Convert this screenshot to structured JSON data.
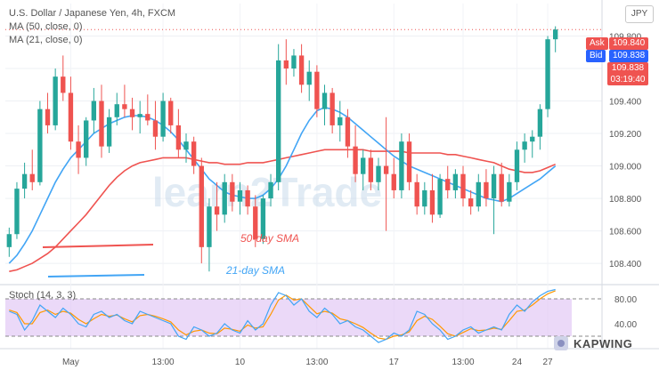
{
  "legend": {
    "symbol": "U.S. Dollar / Japanese Yen, 4h, FXCM",
    "ma50": "MA (50, close, 0)",
    "ma21": "MA (21, close, 0)",
    "stoch": "Stoch (14, 3, 3)"
  },
  "currency_badge": "JPY",
  "quotes": {
    "ask_label": "Ask",
    "ask": "109.840",
    "bid_label": "Bid",
    "bid": "109.838",
    "last": "109.838",
    "countdown": "03:19:40"
  },
  "annotations": {
    "ma50_label": "50-day SMA",
    "ma21_label": "21-day SMA",
    "watermark": "learn2Trade"
  },
  "kapwing": "KAPWING",
  "colors": {
    "up": "#26a69a",
    "down": "#ef5350",
    "ma50": "#ef5350",
    "ma21": "#42a5f5",
    "stoch_k": "#42a5f5",
    "stoch_d": "#ff9800",
    "stoch_band": "#e1c4f5"
  },
  "chart_data": {
    "type": "candlestick",
    "title": "U.S. Dollar / Japanese Yen, 4h, FXCM",
    "y_axis": {
      "ticks": [
        108.4,
        108.6,
        108.8,
        109.0,
        109.2,
        109.4,
        109.6,
        109.8
      ],
      "range": [
        108.28,
        110.0
      ]
    },
    "x_axis": {
      "ticks": [
        "May",
        "13:00",
        "10",
        "13:00",
        "17",
        "13:00",
        "24",
        "27"
      ]
    },
    "candles": [
      [
        108.5,
        108.62,
        108.44,
        108.58
      ],
      [
        108.58,
        108.9,
        108.55,
        108.86
      ],
      [
        108.86,
        109.02,
        108.8,
        108.95
      ],
      [
        108.95,
        109.1,
        108.85,
        108.9
      ],
      [
        108.9,
        109.4,
        108.88,
        109.35
      ],
      [
        109.35,
        109.45,
        109.2,
        109.25
      ],
      [
        109.25,
        109.6,
        109.22,
        109.55
      ],
      [
        109.55,
        109.68,
        109.4,
        109.45
      ],
      [
        109.45,
        109.55,
        109.1,
        109.15
      ],
      [
        109.15,
        109.25,
        108.95,
        109.05
      ],
      [
        109.05,
        109.3,
        109.0,
        109.28
      ],
      [
        109.28,
        109.48,
        109.2,
        109.4
      ],
      [
        109.4,
        109.5,
        109.05,
        109.12
      ],
      [
        109.12,
        109.35,
        109.08,
        109.3
      ],
      [
        109.3,
        109.45,
        109.25,
        109.38
      ],
      [
        109.38,
        109.5,
        109.3,
        109.35
      ],
      [
        109.35,
        109.42,
        109.22,
        109.3
      ],
      [
        109.3,
        109.4,
        109.2,
        109.32
      ],
      [
        109.32,
        109.44,
        109.25,
        109.28
      ],
      [
        109.28,
        109.4,
        109.1,
        109.18
      ],
      [
        109.18,
        109.45,
        109.15,
        109.4
      ],
      [
        109.4,
        109.42,
        109.2,
        109.25
      ],
      [
        109.25,
        109.35,
        109.05,
        109.1
      ],
      [
        109.1,
        109.2,
        109.02,
        109.15
      ],
      [
        109.15,
        109.18,
        108.95,
        109.0
      ],
      [
        109.0,
        109.05,
        108.4,
        108.5
      ],
      [
        108.5,
        108.8,
        108.35,
        108.75
      ],
      [
        108.75,
        108.9,
        108.6,
        108.7
      ],
      [
        108.7,
        108.95,
        108.65,
        108.9
      ],
      [
        108.9,
        108.95,
        108.72,
        108.78
      ],
      [
        108.78,
        108.9,
        108.7,
        108.85
      ],
      [
        108.85,
        108.88,
        108.7,
        108.75
      ],
      [
        108.75,
        108.82,
        108.5,
        108.55
      ],
      [
        108.55,
        108.82,
        108.52,
        108.8
      ],
      [
        108.8,
        108.95,
        108.75,
        108.9
      ],
      [
        108.9,
        109.75,
        108.85,
        109.65
      ],
      [
        109.65,
        109.78,
        109.5,
        109.6
      ],
      [
        109.6,
        109.72,
        109.55,
        109.68
      ],
      [
        109.68,
        109.75,
        109.45,
        109.5
      ],
      [
        109.5,
        109.65,
        109.4,
        109.58
      ],
      [
        109.58,
        109.62,
        109.3,
        109.35
      ],
      [
        109.35,
        109.5,
        109.25,
        109.45
      ],
      [
        109.45,
        109.48,
        109.2,
        109.25
      ],
      [
        109.25,
        109.4,
        109.15,
        109.3
      ],
      [
        109.3,
        109.35,
        109.05,
        109.12
      ],
      [
        109.12,
        109.25,
        108.9,
        108.95
      ],
      [
        108.95,
        109.1,
        108.85,
        109.05
      ],
      [
        109.05,
        109.1,
        108.85,
        108.9
      ],
      [
        108.9,
        109.05,
        108.85,
        109.0
      ],
      [
        109.0,
        109.3,
        108.6,
        108.95
      ],
      [
        108.95,
        109.05,
        108.8,
        108.85
      ],
      [
        108.85,
        109.2,
        108.8,
        109.15
      ],
      [
        109.15,
        109.2,
        108.85,
        108.9
      ],
      [
        108.9,
        108.95,
        108.7,
        108.75
      ],
      [
        108.75,
        108.9,
        108.7,
        108.85
      ],
      [
        108.85,
        108.95,
        108.65,
        108.7
      ],
      [
        108.7,
        108.95,
        108.68,
        108.92
      ],
      [
        108.92,
        109.0,
        108.8,
        108.85
      ],
      [
        108.85,
        108.98,
        108.8,
        108.95
      ],
      [
        108.95,
        109.0,
        108.75,
        108.8
      ],
      [
        108.8,
        108.85,
        108.7,
        108.75
      ],
      [
        108.75,
        108.95,
        108.72,
        108.9
      ],
      [
        108.9,
        108.98,
        108.75,
        108.8
      ],
      [
        108.8,
        109.0,
        108.58,
        108.95
      ],
      [
        108.95,
        109.02,
        108.75,
        108.78
      ],
      [
        108.78,
        108.95,
        108.75,
        108.9
      ],
      [
        108.9,
        109.15,
        108.85,
        109.1
      ],
      [
        109.1,
        109.2,
        109.02,
        109.15
      ],
      [
        109.15,
        109.22,
        109.05,
        109.18
      ],
      [
        109.18,
        109.38,
        109.1,
        109.35
      ],
      [
        109.35,
        109.8,
        109.3,
        109.78
      ],
      [
        109.78,
        109.86,
        109.7,
        109.84
      ]
    ],
    "ma50": [
      108.35,
      108.36,
      108.38,
      108.4,
      108.43,
      108.46,
      108.5,
      108.55,
      108.6,
      108.65,
      108.7,
      108.76,
      108.82,
      108.88,
      108.93,
      108.97,
      109.0,
      109.02,
      109.03,
      109.04,
      109.05,
      109.05,
      109.05,
      109.05,
      109.04,
      109.03,
      109.02,
      109.02,
      109.01,
      109.01,
      109.01,
      109.02,
      109.02,
      109.02,
      109.03,
      109.04,
      109.05,
      109.06,
      109.07,
      109.08,
      109.09,
      109.1,
      109.1,
      109.1,
      109.1,
      109.1,
      109.1,
      109.09,
      109.09,
      109.09,
      109.09,
      109.09,
      109.08,
      109.08,
      109.08,
      109.08,
      109.08,
      109.07,
      109.07,
      109.06,
      109.05,
      109.04,
      109.03,
      109.02,
      109.0,
      108.98,
      108.97,
      108.96,
      108.96,
      108.97,
      108.99,
      109.01
    ],
    "ma21": [
      108.4,
      108.45,
      108.52,
      108.6,
      108.7,
      108.8,
      108.9,
      108.98,
      109.05,
      109.1,
      109.15,
      109.2,
      109.23,
      109.26,
      109.28,
      109.3,
      109.31,
      109.31,
      109.3,
      109.28,
      109.25,
      109.21,
      109.16,
      109.1,
      109.04,
      108.98,
      108.92,
      108.88,
      108.84,
      108.82,
      108.81,
      108.8,
      108.8,
      108.82,
      108.86,
      108.92,
      109.0,
      109.1,
      109.2,
      109.28,
      109.34,
      109.36,
      109.35,
      109.33,
      109.3,
      109.26,
      109.22,
      109.18,
      109.14,
      109.1,
      109.06,
      109.03,
      109.0,
      108.98,
      108.96,
      108.94,
      108.92,
      108.9,
      108.88,
      108.86,
      108.84,
      108.82,
      108.8,
      108.79,
      108.78,
      108.8,
      108.83,
      108.86,
      108.89,
      108.92,
      108.96,
      109.0
    ],
    "stoch": {
      "y_axis": {
        "ticks": [
          40.0,
          80.0
        ],
        "range": [
          0,
          100
        ]
      },
      "k": [
        60,
        55,
        30,
        45,
        70,
        60,
        50,
        65,
        55,
        40,
        35,
        55,
        60,
        50,
        55,
        45,
        40,
        60,
        55,
        50,
        45,
        40,
        20,
        15,
        35,
        30,
        20,
        25,
        40,
        30,
        25,
        45,
        30,
        40,
        70,
        90,
        85,
        70,
        80,
        60,
        50,
        65,
        55,
        40,
        45,
        35,
        30,
        20,
        10,
        15,
        25,
        20,
        30,
        60,
        55,
        40,
        30,
        15,
        20,
        30,
        35,
        25,
        30,
        35,
        30,
        55,
        70,
        60,
        75,
        85,
        92,
        95
      ],
      "d": [
        62,
        58,
        40,
        40,
        58,
        62,
        55,
        60,
        57,
        47,
        40,
        48,
        55,
        52,
        54,
        48,
        43,
        53,
        55,
        52,
        48,
        43,
        30,
        22,
        28,
        30,
        25,
        24,
        33,
        31,
        28,
        38,
        33,
        35,
        55,
        78,
        86,
        78,
        80,
        68,
        56,
        60,
        57,
        48,
        45,
        40,
        34,
        25,
        17,
        15,
        20,
        22,
        27,
        45,
        52,
        47,
        36,
        24,
        20,
        26,
        32,
        29,
        30,
        33,
        31,
        45,
        60,
        62,
        70,
        80,
        88,
        93
      ]
    }
  }
}
